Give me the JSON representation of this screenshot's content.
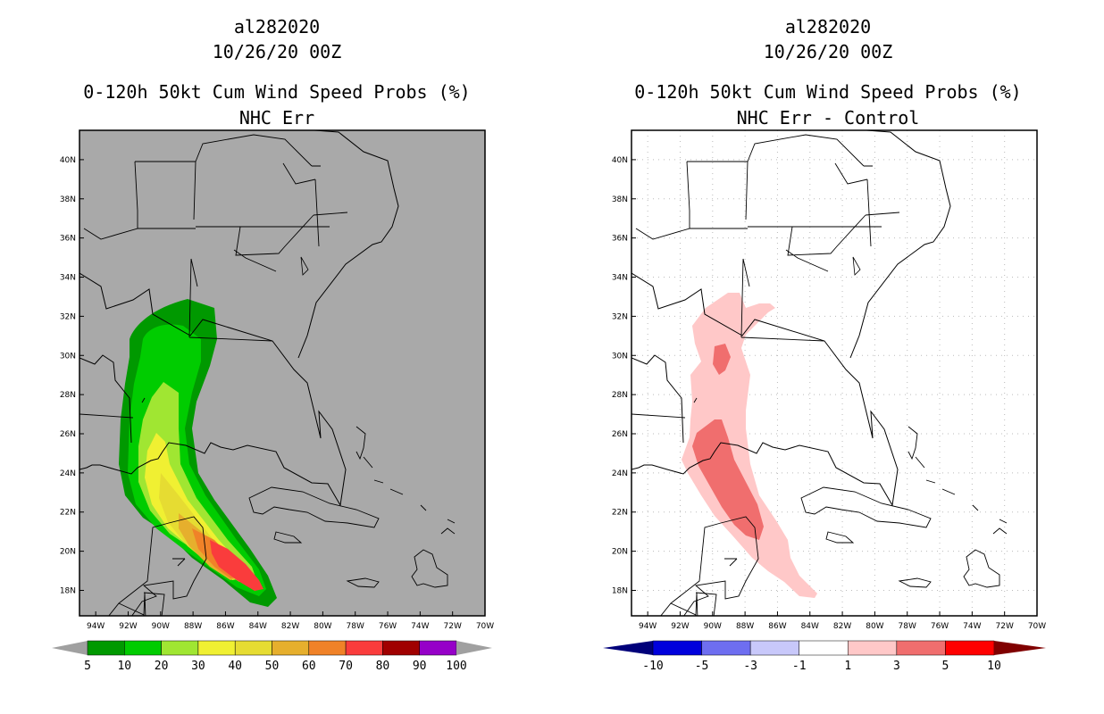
{
  "left_panel": {
    "storm_id": "al282020",
    "datetime": "10/26/20 00Z",
    "product": "0-120h 50kt Cum Wind Speed Probs (%)",
    "subtitle": "NHC Err",
    "map_background": "#a9a9a9",
    "legend": {
      "labels": [
        "5",
        "10",
        "20",
        "30",
        "40",
        "50",
        "60",
        "70",
        "80",
        "90",
        "100"
      ],
      "colors": [
        "#009900",
        "#00cc00",
        "#a0e632",
        "#f0f032",
        "#e6dc32",
        "#e6af2d",
        "#f08228",
        "#fa3c3c",
        "#a00000",
        "#9600c8"
      ],
      "end_arrow_color": "#a0a0a0"
    }
  },
  "right_panel": {
    "storm_id": "al282020",
    "datetime": "10/26/20 00Z",
    "product": "0-120h 50kt Cum Wind Speed Probs (%)",
    "subtitle": "NHC Err - Control",
    "map_background": "#ffffff",
    "legend": {
      "labels": [
        "-10",
        "-5",
        "-3",
        "-1",
        "1",
        "3",
        "5",
        "10"
      ],
      "colors": [
        "#0000dc",
        "#6e6ef0",
        "#c8c8fa",
        "#ffffff",
        "#ffc8c8",
        "#f06e6e",
        "#ff0000"
      ],
      "low_arrow_color": "#00007a",
      "high_arrow_color": "#800000"
    }
  },
  "axes": {
    "lat_labels": [
      "18N",
      "20N",
      "22N",
      "24N",
      "26N",
      "28N",
      "30N",
      "32N",
      "34N",
      "36N",
      "38N",
      "40N"
    ],
    "lon_labels": [
      "94W",
      "92W",
      "90W",
      "88W",
      "86W",
      "84W",
      "82W",
      "80W",
      "78W",
      "76W",
      "74W",
      "72W",
      "70W"
    ],
    "lat_range": [
      16.7,
      41.5
    ],
    "lon_range": [
      95.0,
      70.0
    ]
  }
}
